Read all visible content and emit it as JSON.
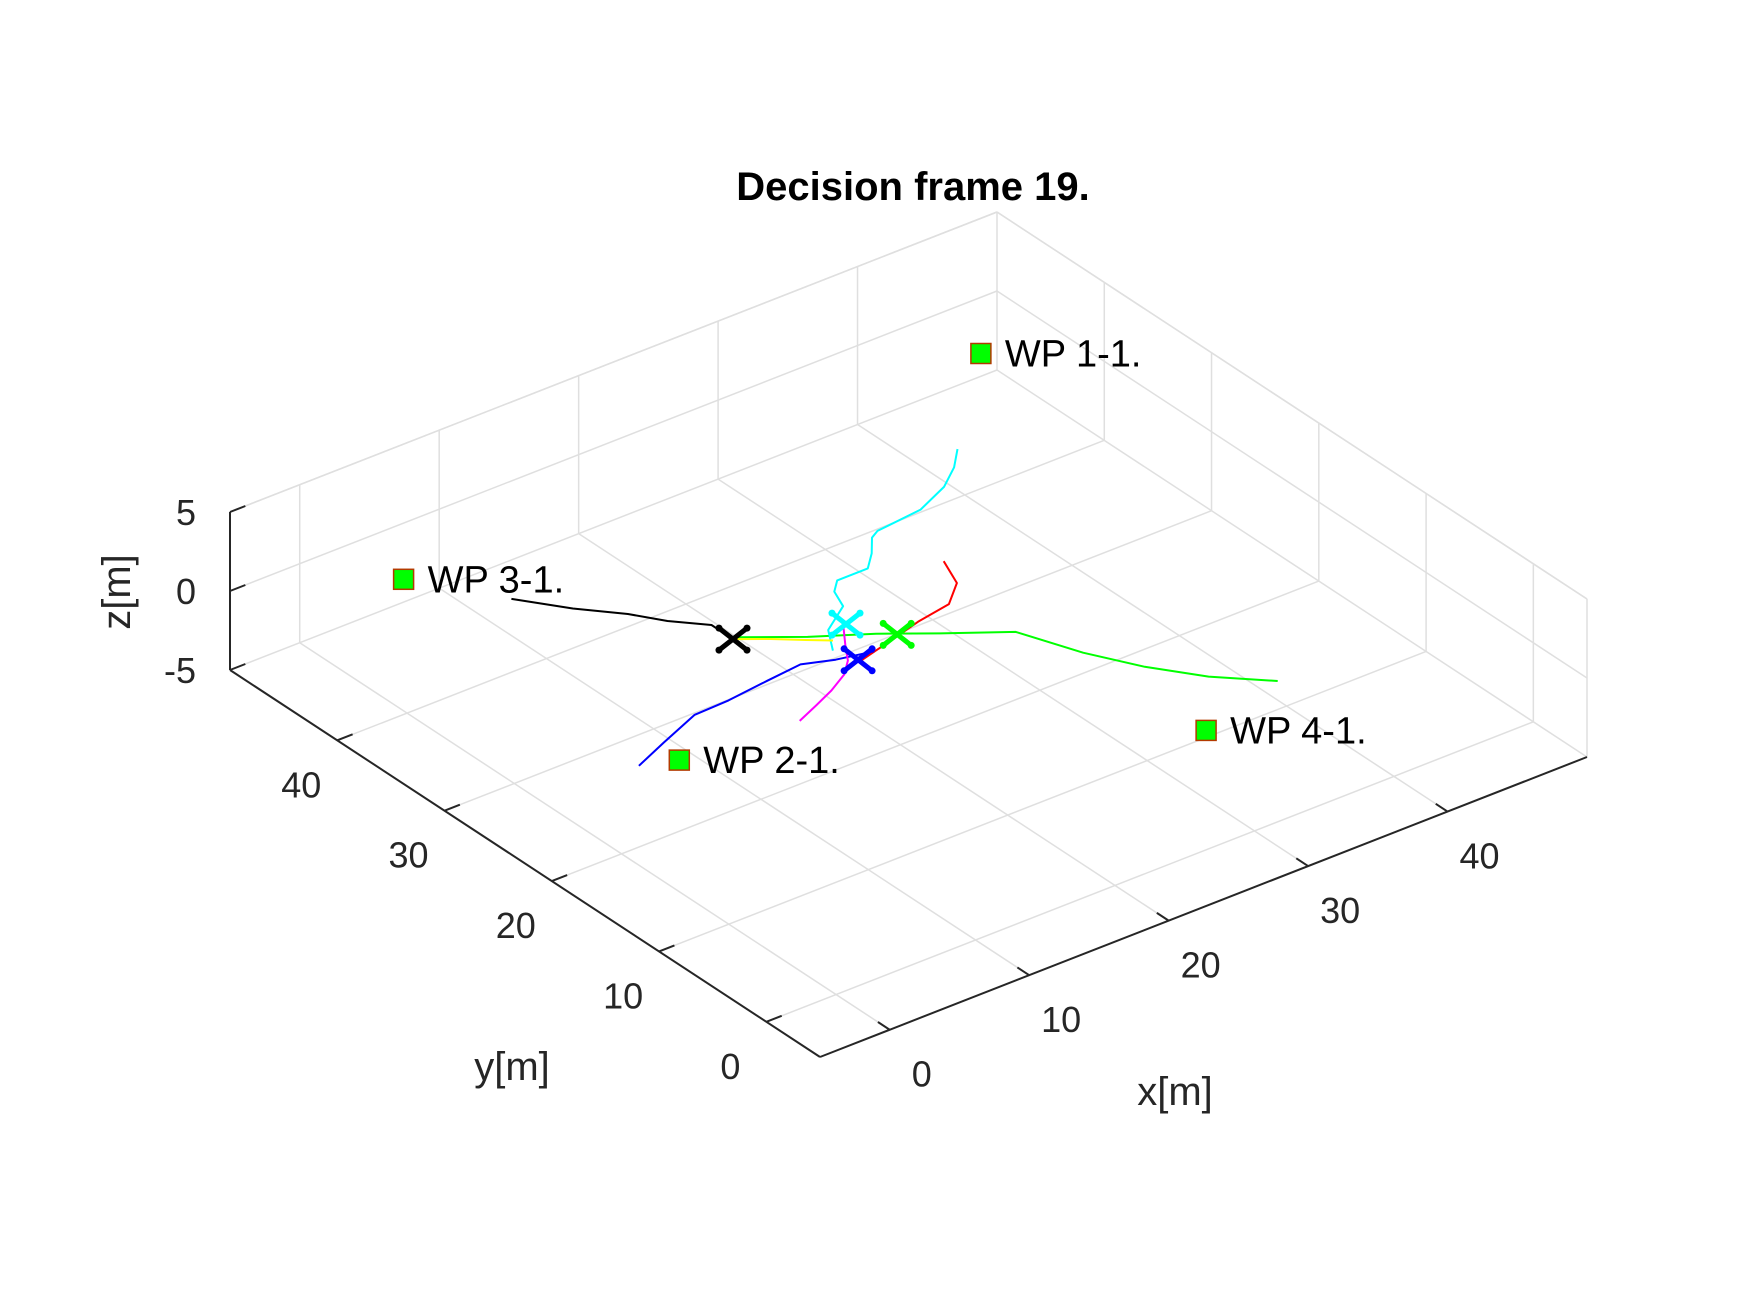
{
  "chart_data": {
    "type": "line3d",
    "title": "Decision frame 19.",
    "xlabel": "x[m]",
    "ylabel": "y[m]",
    "zlabel": "z[m]",
    "xlim": [
      -5,
      50
    ],
    "ylim": [
      -5,
      50
    ],
    "zlim": [
      -5,
      5
    ],
    "grid": true,
    "x_ticks": [
      0,
      10,
      20,
      30,
      40
    ],
    "y_ticks": [
      0,
      10,
      20,
      30,
      40
    ],
    "z_ticks": [
      -5,
      0,
      5
    ],
    "x_tick_labels": [
      "0",
      "10",
      "20",
      "30",
      "40"
    ],
    "y_tick_labels": [
      "0",
      "10",
      "20",
      "30",
      "40"
    ],
    "z_tick_labels": [
      "-5",
      "0",
      "5"
    ],
    "waypoints": [
      {
        "label": "WP 3-1.",
        "x": 3.6,
        "y": 45,
        "z": 0,
        "color": "#00ff00"
      },
      {
        "label": "WP 1-1.",
        "x": 45,
        "y": 45,
        "z": 0,
        "color": "#00ff00"
      },
      {
        "label": "WP 2-1.",
        "x": 3.6,
        "y": 19.3,
        "z": 0,
        "color": "#00ff00"
      },
      {
        "label": "WP 4-1.",
        "x": 29.3,
        "y": 3.6,
        "z": 0,
        "color": "#00ff00"
      }
    ],
    "series": [
      {
        "color": "#000000",
        "points": [
          [
            7.1,
            39.5,
            0
          ],
          [
            9.2,
            36.5,
            0
          ],
          [
            11.3,
            34.1,
            0
          ],
          [
            12.6,
            32.1,
            0
          ],
          [
            14.3,
            30.2,
            0
          ],
          [
            14.3,
            27.9,
            0
          ]
        ]
      },
      {
        "color": "#00ffff",
        "points": [
          [
            37.4,
            37.3,
            0
          ],
          [
            36.0,
            35.8,
            0
          ],
          [
            34.2,
            34.4,
            0
          ],
          [
            31.6,
            33.2,
            0
          ],
          [
            28.2,
            32.8,
            0
          ],
          [
            27.5,
            32.4,
            0
          ],
          [
            26.4,
            31.0,
            0
          ],
          [
            25.2,
            29.8,
            0
          ],
          [
            23.0,
            29.8,
            0
          ],
          [
            22.1,
            28.9,
            0
          ],
          [
            21.5,
            27.3,
            0
          ],
          [
            19.2,
            25.7,
            0
          ],
          [
            18.0,
            23.7,
            0
          ]
        ]
      },
      {
        "color": "#ff0000",
        "points": [
          [
            29.1,
            27.8,
            0
          ],
          [
            28.2,
            25.4,
            0
          ],
          [
            26.4,
            23.8,
            0
          ],
          [
            23.8,
            23.3,
            0
          ],
          [
            21.4,
            22.6,
            0
          ],
          [
            19.9,
            22.2,
            0
          ],
          [
            18.5,
            21.8,
            0
          ]
        ]
      },
      {
        "color": "#00ff00",
        "points": [
          [
            14.5,
            28.3,
            0
          ],
          [
            17.8,
            25.8,
            0
          ],
          [
            21.1,
            23.7,
            0
          ],
          [
            24.0,
            21.5,
            0
          ],
          [
            27.5,
            19.0,
            0
          ],
          [
            29.1,
            14.8,
            0
          ],
          [
            30.9,
            11.4,
            0
          ],
          [
            33.1,
            8.3,
            0
          ],
          [
            35.9,
            5.5,
            0
          ]
        ]
      },
      {
        "color": "#0000ff",
        "points": [
          [
            1.4,
            20.2,
            0
          ],
          [
            4.1,
            21.4,
            0
          ],
          [
            7.4,
            22.8,
            0
          ],
          [
            9.9,
            22.9,
            0
          ],
          [
            13.0,
            23.3,
            0
          ],
          [
            15.6,
            23.6,
            0
          ],
          [
            17.5,
            22.8,
            0
          ],
          [
            19.8,
            22.2,
            0
          ]
        ]
      },
      {
        "color": "#ff00ff",
        "points": [
          [
            11.7,
            18.6,
            0
          ],
          [
            13.5,
            19.4,
            0
          ],
          [
            15.2,
            20.2,
            0
          ],
          [
            16.9,
            21.2,
            0
          ],
          [
            18.0,
            22.3,
            0
          ],
          [
            18.9,
            23.7,
            0
          ],
          [
            20.0,
            25.3,
            0
          ]
        ]
      },
      {
        "color": "#ffff00",
        "points": [
          [
            14.3,
            28.2,
            0
          ],
          [
            16.0,
            26.9,
            0
          ],
          [
            17.5,
            25.6,
            0
          ],
          [
            18.7,
            24.6,
            0
          ]
        ]
      }
    ],
    "vehicles": [
      {
        "color": "#000000",
        "x": 14.3,
        "y": 28.2,
        "z": 0
      },
      {
        "color": "#00ffff",
        "x": 20.4,
        "y": 25.6,
        "z": 0
      },
      {
        "color": "#00ff00",
        "x": 22.0,
        "y": 22.9,
        "z": 0
      },
      {
        "color": "#0000ff",
        "x": 18.5,
        "y": 22.0,
        "z": 0
      }
    ]
  }
}
